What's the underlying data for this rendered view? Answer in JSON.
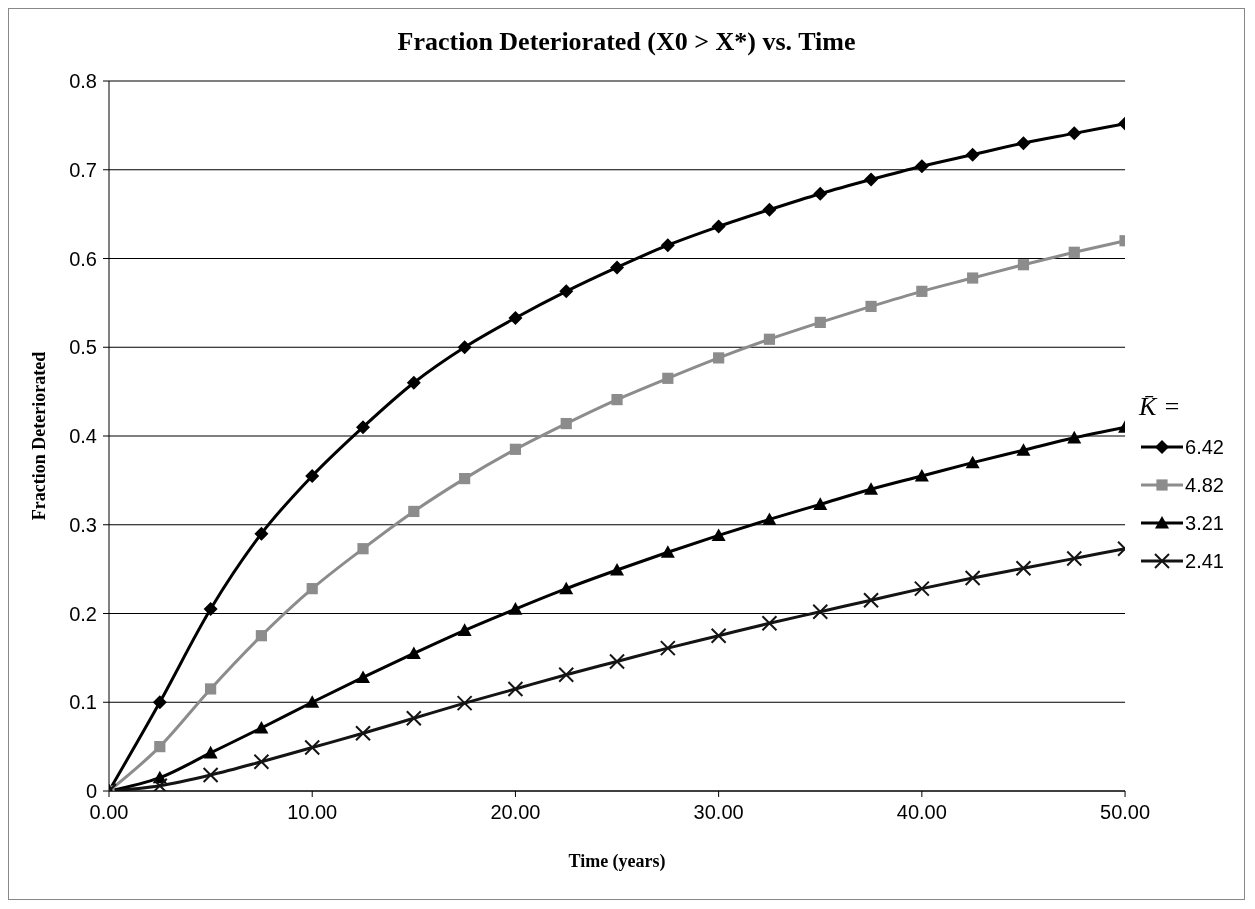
{
  "chart_data": {
    "type": "line",
    "title": "Fraction Deteriorated (X0 > X*) vs. Time",
    "xlabel": "Time (years)",
    "ylabel": "Fraction Deteriorated",
    "legend_title": "K̄ =",
    "x": [
      0,
      2.5,
      5,
      7.5,
      10,
      12.5,
      15,
      17.5,
      20,
      22.5,
      25,
      27.5,
      30,
      32.5,
      35,
      37.5,
      40,
      42.5,
      45,
      47.5,
      50
    ],
    "series": [
      {
        "name": "6.42",
        "color": "#000000",
        "marker": "diamond",
        "values": [
          0,
          0.1,
          0.205,
          0.29,
          0.355,
          0.41,
          0.46,
          0.5,
          0.533,
          0.563,
          0.59,
          0.615,
          0.636,
          0.655,
          0.673,
          0.689,
          0.704,
          0.717,
          0.73,
          0.741,
          0.752
        ]
      },
      {
        "name": "4.82",
        "color": "#8c8c8c",
        "marker": "square",
        "values": [
          0,
          0.05,
          0.115,
          0.175,
          0.228,
          0.273,
          0.315,
          0.352,
          0.385,
          0.414,
          0.441,
          0.465,
          0.488,
          0.509,
          0.528,
          0.546,
          0.563,
          0.578,
          0.593,
          0.607,
          0.62
        ]
      },
      {
        "name": "3.21",
        "color": "#000000",
        "marker": "triangle",
        "values": [
          0,
          0.015,
          0.043,
          0.071,
          0.1,
          0.128,
          0.155,
          0.181,
          0.205,
          0.228,
          0.249,
          0.269,
          0.288,
          0.306,
          0.323,
          0.34,
          0.355,
          0.37,
          0.384,
          0.398,
          0.41
        ]
      },
      {
        "name": "2.41",
        "color": "#141414",
        "marker": "cross",
        "values": [
          0,
          0.006,
          0.018,
          0.033,
          0.049,
          0.065,
          0.082,
          0.099,
          0.115,
          0.131,
          0.146,
          0.161,
          0.175,
          0.189,
          0.202,
          0.215,
          0.228,
          0.24,
          0.251,
          0.262,
          0.273
        ]
      }
    ],
    "xlim": [
      0,
      50
    ],
    "xticks": [
      {
        "value": 0,
        "label": "0.00"
      },
      {
        "value": 10,
        "label": "10.00"
      },
      {
        "value": 20,
        "label": "20.00"
      },
      {
        "value": 30,
        "label": "30.00"
      },
      {
        "value": 40,
        "label": "40.00"
      },
      {
        "value": 50,
        "label": "50.00"
      }
    ],
    "ylim": [
      0,
      0.8
    ],
    "yticks": [
      0,
      0.1,
      0.2,
      0.3,
      0.4,
      0.5,
      0.6,
      0.7,
      0.8
    ],
    "grid": "y",
    "legend": "right",
    "line_style": "solid"
  }
}
